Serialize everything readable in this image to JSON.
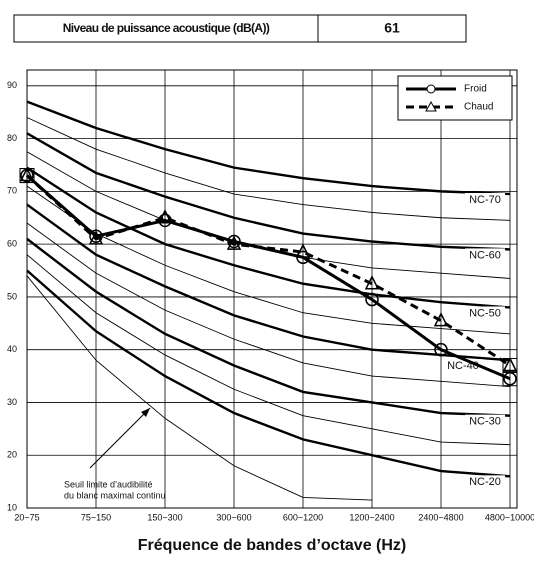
{
  "table": {
    "rows": [
      [
        "Niveau de puissance acoustique (dB(A))",
        61
      ]
    ]
  },
  "chart_data": {
    "type": "line",
    "x_label": "Fréquence de bandes d’octave (Hz)",
    "categories": [
      "20~75",
      "75~150",
      "150~300",
      "300~600",
      "600~1200",
      "1200~2400",
      "2400~4800",
      "4800~10000"
    ],
    "series": [
      {
        "name": "Froid",
        "color": "#000000",
        "values": [
          73,
          61.5,
          64.5,
          60.5,
          57.5,
          49.5,
          40,
          34.5
        ]
      },
      {
        "name": "Chaud",
        "color": "#000000",
        "values": [
          73,
          61,
          65,
          60,
          58.5,
          52.5,
          45.5,
          37
        ]
      }
    ],
    "nc_curves": [
      {
        "label": "NC-70",
        "values": [
          87,
          82,
          78,
          74.5,
          72.5,
          71,
          70,
          69.5
        ]
      },
      {
        "values": [
          84,
          78,
          73.5,
          69.5,
          67.5,
          66,
          65,
          64.5
        ]
      },
      {
        "label": "NC-60",
        "values": [
          81,
          73.5,
          69,
          65,
          62,
          60.5,
          59.5,
          59
        ]
      },
      {
        "values": [
          77.5,
          70,
          64.5,
          60.5,
          57.5,
          55.5,
          54.5,
          53.5
        ]
      },
      {
        "label": "NC-50",
        "values": [
          74.5,
          66,
          60,
          56,
          52.5,
          50.5,
          49,
          48
        ]
      },
      {
        "values": [
          71,
          62,
          56,
          51,
          47,
          45,
          44,
          43
        ]
      },
      {
        "label": "NC-40",
        "values": [
          67.5,
          58,
          52,
          46.5,
          42.5,
          40,
          39,
          38
        ]
      },
      {
        "values": [
          64,
          54.5,
          47.5,
          42,
          37.5,
          35,
          34,
          33
        ]
      },
      {
        "label": "NC-30",
        "values": [
          61,
          51,
          43,
          37,
          32,
          30,
          28,
          27.5
        ]
      },
      {
        "values": [
          58,
          47,
          39,
          32.5,
          27.5,
          25,
          22.5,
          22
        ]
      },
      {
        "label": "NC-20",
        "values": [
          55,
          43.5,
          35,
          28,
          23,
          20,
          17,
          16
        ]
      },
      {
        "values": [
          54,
          38,
          27,
          18,
          12,
          11.5,
          null,
          null
        ]
      }
    ],
    "annotation": [
      "Seuil limite d’audibilité",
      "du blanc maximal continu"
    ],
    "ylim": [
      10,
      93
    ],
    "yticks": [
      10,
      20,
      30,
      40,
      50,
      60,
      70,
      80,
      90
    ],
    "grid": true,
    "legend": "top-right"
  }
}
